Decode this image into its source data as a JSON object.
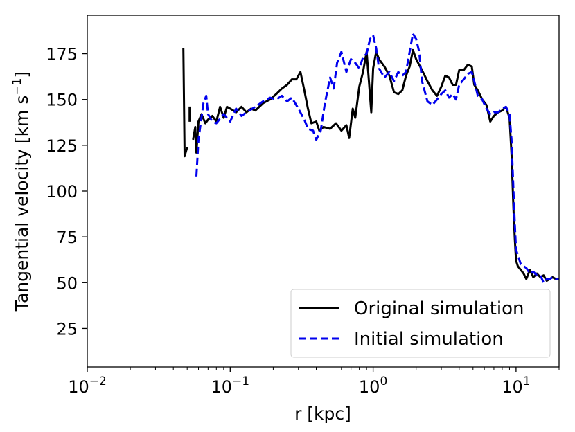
{
  "chart_data": {
    "type": "line",
    "title": "",
    "xlabel": "r [kpc]",
    "ylabel_main": "Tangential velocity [km s",
    "ylabel_sup": "−1",
    "ylabel_close": "]",
    "xscale": "log",
    "xlim": [
      0.01,
      20
    ],
    "ylim": [
      4,
      196
    ],
    "grid": false,
    "legend_position": "lower-right",
    "x_ticks": [
      {
        "value": 0.01,
        "base": "10",
        "exp": "−2"
      },
      {
        "value": 0.1,
        "base": "10",
        "exp": "−1"
      },
      {
        "value": 1,
        "base": "10",
        "exp": "0"
      },
      {
        "value": 10,
        "base": "10",
        "exp": "1"
      }
    ],
    "y_ticks": [
      {
        "value": 25,
        "label": "25"
      },
      {
        "value": 50,
        "label": "50"
      },
      {
        "value": 75,
        "label": "75"
      },
      {
        "value": 100,
        "label": "100"
      },
      {
        "value": 125,
        "label": "125"
      },
      {
        "value": 150,
        "label": "150"
      },
      {
        "value": 175,
        "label": "175"
      }
    ],
    "series": [
      {
        "name": "Original simulation",
        "color": "#000000",
        "style": "solid",
        "segments": [
          [
            [
              0.047,
              178
            ],
            [
              0.048,
              119
            ],
            [
              0.05,
              124
            ]
          ],
          [
            [
              0.052,
              142
            ]
          ],
          [
            [
              0.055,
              128
            ],
            [
              0.057,
              135
            ],
            [
              0.058,
              121
            ],
            [
              0.06,
              138
            ],
            [
              0.063,
              142
            ],
            [
              0.067,
              137
            ],
            [
              0.07,
              139
            ],
            [
              0.075,
              141
            ],
            [
              0.08,
              138
            ],
            [
              0.085,
              146
            ],
            [
              0.09,
              140
            ],
            [
              0.095,
              146
            ],
            [
              0.1,
              145
            ],
            [
              0.11,
              143
            ],
            [
              0.12,
              146
            ],
            [
              0.13,
              143
            ],
            [
              0.14,
              145
            ],
            [
              0.15,
              144
            ],
            [
              0.17,
              148
            ],
            [
              0.19,
              150
            ],
            [
              0.21,
              153
            ],
            [
              0.23,
              156
            ],
            [
              0.25,
              158
            ],
            [
              0.27,
              161
            ],
            [
              0.29,
              161
            ],
            [
              0.31,
              165
            ],
            [
              0.33,
              155
            ],
            [
              0.35,
              145
            ],
            [
              0.37,
              137
            ],
            [
              0.4,
              138
            ],
            [
              0.42,
              133
            ],
            [
              0.45,
              135
            ],
            [
              0.5,
              134
            ],
            [
              0.55,
              137
            ],
            [
              0.6,
              133
            ],
            [
              0.65,
              136
            ],
            [
              0.68,
              129
            ],
            [
              0.72,
              145
            ],
            [
              0.75,
              140
            ],
            [
              0.8,
              157
            ],
            [
              0.85,
              165
            ],
            [
              0.9,
              176
            ],
            [
              0.93,
              162
            ],
            [
              0.97,
              143
            ],
            [
              1.0,
              167
            ],
            [
              1.05,
              176
            ],
            [
              1.1,
              172
            ],
            [
              1.2,
              168
            ],
            [
              1.3,
              163
            ],
            [
              1.4,
              154
            ],
            [
              1.5,
              153
            ],
            [
              1.6,
              155
            ],
            [
              1.7,
              163
            ],
            [
              1.8,
              168
            ],
            [
              1.9,
              177
            ],
            [
              2.0,
              172
            ],
            [
              2.2,
              166
            ],
            [
              2.4,
              160
            ],
            [
              2.6,
              155
            ],
            [
              2.8,
              152
            ],
            [
              3.0,
              157
            ],
            [
              3.2,
              163
            ],
            [
              3.4,
              162
            ],
            [
              3.6,
              158
            ],
            [
              3.8,
              158
            ],
            [
              4.0,
              166
            ],
            [
              4.3,
              166
            ],
            [
              4.6,
              169
            ],
            [
              4.9,
              168
            ],
            [
              5.1,
              158
            ],
            [
              5.4,
              155
            ],
            [
              5.8,
              150
            ],
            [
              6.2,
              147
            ],
            [
              6.6,
              138
            ],
            [
              7.0,
              141
            ],
            [
              7.5,
              143
            ],
            [
              8.0,
              144
            ],
            [
              8.5,
              146
            ],
            [
              9.0,
              140
            ],
            [
              9.3,
              120
            ],
            [
              9.6,
              90
            ],
            [
              9.8,
              74
            ],
            [
              10.0,
              62
            ],
            [
              10.3,
              59
            ],
            [
              10.8,
              57
            ],
            [
              11.3,
              55
            ],
            [
              11.8,
              52
            ],
            [
              12.5,
              57
            ],
            [
              13.2,
              53
            ],
            [
              14.0,
              55
            ],
            [
              14.8,
              53
            ],
            [
              15.6,
              54
            ],
            [
              16.4,
              51
            ],
            [
              17.2,
              52
            ],
            [
              18.0,
              53
            ],
            [
              19.0,
              52
            ],
            [
              20.0,
              52
            ]
          ]
        ]
      },
      {
        "name": "Initial simulation",
        "color": "#0000ee",
        "style": "dashed",
        "segments": [
          [
            [
              0.058,
              108
            ],
            [
              0.06,
              128
            ],
            [
              0.065,
              148
            ],
            [
              0.068,
              152
            ],
            [
              0.07,
              142
            ],
            [
              0.075,
              138
            ],
            [
              0.08,
              137
            ],
            [
              0.09,
              142
            ],
            [
              0.1,
              138
            ],
            [
              0.11,
              145
            ],
            [
              0.12,
              141
            ],
            [
              0.13,
              143
            ],
            [
              0.15,
              146
            ],
            [
              0.17,
              149
            ],
            [
              0.19,
              151
            ],
            [
              0.21,
              150
            ],
            [
              0.23,
              152
            ],
            [
              0.25,
              149
            ],
            [
              0.27,
              151
            ],
            [
              0.3,
              145
            ],
            [
              0.33,
              139
            ],
            [
              0.35,
              134
            ],
            [
              0.38,
              133
            ],
            [
              0.4,
              128
            ],
            [
              0.43,
              133
            ],
            [
              0.46,
              148
            ],
            [
              0.5,
              162
            ],
            [
              0.53,
              156
            ],
            [
              0.56,
              170
            ],
            [
              0.6,
              176
            ],
            [
              0.65,
              165
            ],
            [
              0.7,
              172
            ],
            [
              0.75,
              170
            ],
            [
              0.8,
              167
            ],
            [
              0.85,
              173
            ],
            [
              0.9,
              175
            ],
            [
              0.95,
              183
            ],
            [
              1.0,
              185
            ],
            [
              1.05,
              178
            ],
            [
              1.1,
              167
            ],
            [
              1.2,
              162
            ],
            [
              1.3,
              165
            ],
            [
              1.4,
              160
            ],
            [
              1.5,
              165
            ],
            [
              1.6,
              163
            ],
            [
              1.7,
              165
            ],
            [
              1.8,
              176
            ],
            [
              1.9,
              186
            ],
            [
              2.0,
              183
            ],
            [
              2.1,
              176
            ],
            [
              2.2,
              160
            ],
            [
              2.4,
              149
            ],
            [
              2.6,
              147
            ],
            [
              2.8,
              150
            ],
            [
              3.0,
              153
            ],
            [
              3.2,
              155
            ],
            [
              3.4,
              151
            ],
            [
              3.6,
              153
            ],
            [
              3.8,
              150
            ],
            [
              4.0,
              158
            ],
            [
              4.3,
              161
            ],
            [
              4.6,
              164
            ],
            [
              4.9,
              165
            ],
            [
              5.1,
              160
            ],
            [
              5.4,
              152
            ],
            [
              5.8,
              150
            ],
            [
              6.2,
              145
            ],
            [
              6.6,
              142
            ],
            [
              7.0,
              143
            ],
            [
              7.5,
              143
            ],
            [
              8.0,
              145
            ],
            [
              8.5,
              146
            ],
            [
              9.0,
              142
            ],
            [
              9.3,
              128
            ],
            [
              9.6,
              100
            ],
            [
              9.8,
              82
            ],
            [
              10.0,
              68
            ],
            [
              10.4,
              64
            ],
            [
              10.8,
              60
            ],
            [
              11.3,
              59
            ],
            [
              11.8,
              58
            ],
            [
              12.5,
              55
            ],
            [
              13.2,
              56
            ],
            [
              14.0,
              54
            ],
            [
              14.8,
              54
            ],
            [
              15.6,
              50
            ],
            [
              16.4,
              52
            ],
            [
              17.2,
              52
            ],
            [
              18.0,
              53
            ],
            [
              19.0,
              52
            ],
            [
              20.0,
              52
            ]
          ]
        ]
      }
    ]
  }
}
